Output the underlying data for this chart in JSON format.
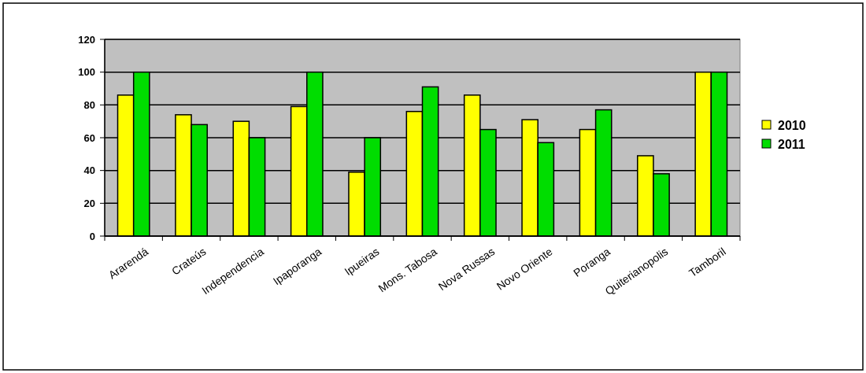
{
  "chart_data": {
    "type": "bar",
    "categories": [
      "Ararendá",
      "Crateús",
      "Independencia",
      "Ipaporanga",
      "Ipueiras",
      "Mons. Tabosa",
      "Nova Russas",
      "Novo Oriente",
      "Poranga",
      "Quiterianopolis",
      "Tamboril"
    ],
    "series": [
      {
        "name": "2010",
        "color": "#ffff00",
        "values": [
          86,
          74,
          70,
          79,
          39,
          76,
          86,
          71,
          65,
          49,
          100
        ]
      },
      {
        "name": "2011",
        "color": "#00dd00",
        "values": [
          100,
          68,
          60,
          100,
          60,
          91,
          65,
          57,
          77,
          38,
          100
        ]
      }
    ],
    "ylim": [
      0,
      120
    ],
    "yticks": [
      0,
      20,
      40,
      60,
      80,
      100,
      120
    ],
    "grid": "y",
    "legend": "right"
  }
}
